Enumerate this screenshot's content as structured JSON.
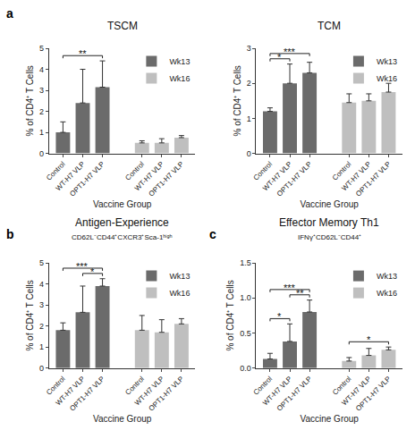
{
  "chart_data": [
    {
      "panel": "a",
      "type": "bar",
      "title": "TSCM",
      "x_label": "Vaccine Group",
      "y_label": "% of CD4⁺ T Cells",
      "categories": [
        "Control",
        "WT-H7 VLP",
        "OPT1-H7 VLP",
        null,
        "Control",
        "WT-H7 VLP",
        "OPT1-H7 VLP"
      ],
      "series": [
        {
          "name": "Wk13",
          "color": "#6b6b6b",
          "values": [
            1.0,
            2.4,
            3.15,
            null,
            null,
            null,
            null
          ],
          "errors": [
            0.5,
            1.6,
            1.25,
            null,
            null,
            null,
            null
          ]
        },
        {
          "name": "Wk16",
          "color": "#bfbfbf",
          "values": [
            null,
            null,
            null,
            null,
            0.5,
            0.5,
            0.75
          ],
          "errors": [
            null,
            null,
            null,
            null,
            0.1,
            0.2,
            0.1
          ]
        }
      ],
      "ylim": [
        0,
        5
      ],
      "yticks": [
        0,
        1,
        2,
        3,
        4,
        5
      ],
      "grid": false,
      "legend": "top right",
      "significance": [
        {
          "from": 0,
          "to": 2,
          "label": "**"
        }
      ]
    },
    {
      "type": "bar",
      "title": "TCM",
      "x_label": "Vaccine Group",
      "y_label": "% of CD4⁺ T Cells",
      "categories": [
        "Control",
        "WT-H7 VLP",
        "OPT1-H7 VLP",
        null,
        "Control",
        "WT-H7 VLP",
        "OPT1-H7 VLP"
      ],
      "series": [
        {
          "name": "Wk13",
          "color": "#6b6b6b",
          "values": [
            1.2,
            2.0,
            2.3,
            null,
            null,
            null,
            null
          ],
          "errors": [
            0.1,
            0.55,
            0.3,
            null,
            null,
            null,
            null
          ]
        },
        {
          "name": "Wk16",
          "color": "#bfbfbf",
          "values": [
            null,
            null,
            null,
            null,
            1.45,
            1.5,
            1.75
          ],
          "errors": [
            null,
            null,
            null,
            null,
            0.25,
            0.2,
            0.25
          ]
        }
      ],
      "ylim": [
        0,
        3
      ],
      "yticks": [
        0,
        1,
        2,
        3
      ],
      "grid": false,
      "legend": "top right",
      "significance": [
        {
          "from": 0,
          "to": 1,
          "label": "*"
        },
        {
          "from": 0,
          "to": 2,
          "label": "***"
        }
      ]
    },
    {
      "panel": "b",
      "type": "bar",
      "title": "Antigen-Experience",
      "subtitle": "CD62L⁻CD44⁺CXCR3⁺Sca-1ʰⁱᵍʰ",
      "x_label": "Vaccine Group",
      "y_label": "% of CD4⁺ T Cells",
      "categories": [
        "Control",
        "WT-H7 VLP",
        "OPT1-H7 VLP",
        null,
        "Control",
        "WT-H7 VLP",
        "OPT1-H7 VLP"
      ],
      "series": [
        {
          "name": "Wk13",
          "color": "#6b6b6b",
          "values": [
            1.8,
            2.65,
            3.9,
            null,
            null,
            null,
            null
          ],
          "errors": [
            0.35,
            1.25,
            0.35,
            null,
            null,
            null,
            null
          ]
        },
        {
          "name": "Wk16",
          "color": "#bfbfbf",
          "values": [
            null,
            null,
            null,
            null,
            1.8,
            1.7,
            2.1
          ],
          "errors": [
            null,
            null,
            null,
            null,
            0.7,
            0.6,
            0.25
          ]
        }
      ],
      "ylim": [
        0,
        5
      ],
      "yticks": [
        0,
        1,
        2,
        3,
        4,
        5
      ],
      "grid": false,
      "legend": "top right",
      "significance": [
        {
          "from": 1,
          "to": 2,
          "label": "*"
        },
        {
          "from": 0,
          "to": 2,
          "label": "***"
        }
      ]
    },
    {
      "panel": "c",
      "type": "bar",
      "title": "Effector Memory Th1",
      "subtitle": "IFNγ⁺CD62L⁻CD44⁺",
      "x_label": "Vaccine Group",
      "y_label": "% of CD4⁺ T Cells",
      "categories": [
        "Control",
        "WT-H7 VLP",
        "OPT1-H7 VLP",
        null,
        "Control",
        "WT-H7 VLP",
        "OPT1-H7 VLP"
      ],
      "series": [
        {
          "name": "Wk13",
          "color": "#6b6b6b",
          "values": [
            0.13,
            0.38,
            0.8,
            null,
            null,
            null,
            null
          ],
          "errors": [
            0.08,
            0.25,
            0.17,
            null,
            null,
            null,
            null
          ]
        },
        {
          "name": "Wk16",
          "color": "#bfbfbf",
          "values": [
            null,
            null,
            null,
            null,
            0.1,
            0.18,
            0.26
          ],
          "errors": [
            null,
            null,
            null,
            null,
            0.05,
            0.1,
            0.04
          ]
        }
      ],
      "ylim": [
        0,
        1.5
      ],
      "yticks": [
        {
          "value": 0,
          "label": "0.0"
        },
        0.5,
        {
          "value": 1,
          "label": "1.0"
        },
        1.5
      ],
      "grid": false,
      "legend": "top right",
      "significance": [
        {
          "from": 0,
          "to": 1,
          "label": "*"
        },
        {
          "from": 1,
          "to": 2,
          "label": "**"
        },
        {
          "from": 0,
          "to": 2,
          "label": "***"
        },
        {
          "from": 4,
          "to": 6,
          "label": "*"
        }
      ]
    }
  ]
}
